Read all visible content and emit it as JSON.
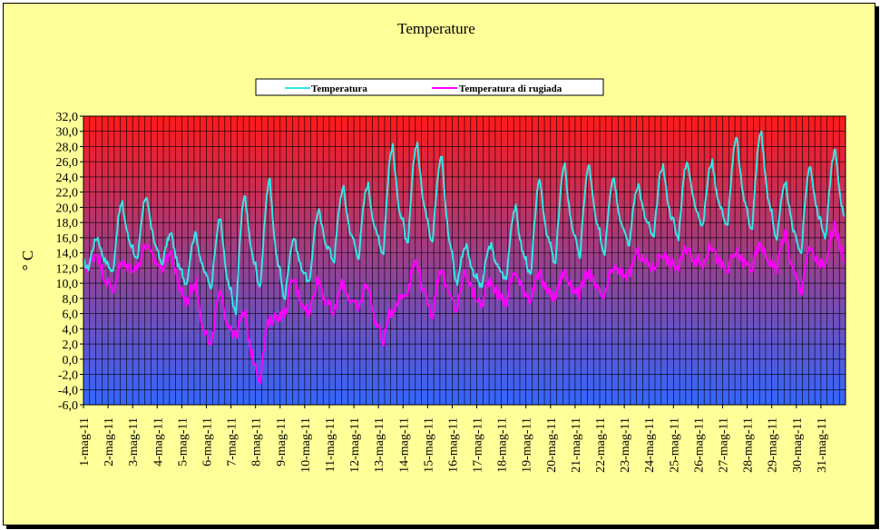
{
  "chart_data": {
    "type": "line",
    "title": "Temperature",
    "xlabel": "",
    "ylabel": "° C",
    "ylim": [
      -6,
      32
    ],
    "ytick_step": 2,
    "ytick_labels": [
      "-6,0",
      "-4,0",
      "-2,0",
      "0,0",
      "2,0",
      "4,0",
      "6,0",
      "8,0",
      "10,0",
      "12,0",
      "14,0",
      "16,0",
      "18,0",
      "20,0",
      "22,0",
      "24,0",
      "26,0",
      "28,0",
      "30,0",
      "32,0"
    ],
    "categories": [
      "1-mag-11",
      "2-mag-11",
      "3-mag-11",
      "4-mag-11",
      "5-mag-11",
      "6-mag-11",
      "7-mag-11",
      "8-mag-11",
      "9-mag-11",
      "10-mag-11",
      "11-mag-11",
      "12-mag-11",
      "13-mag-11",
      "14-mag-11",
      "15-mag-11",
      "16-mag-11",
      "17-mag-11",
      "18-mag-11",
      "19-mag-11",
      "20-mag-11",
      "21-mag-11",
      "22-mag-11",
      "23-mag-11",
      "24-mag-11",
      "25-mag-11",
      "26-mag-11",
      "27-mag-11",
      "28-mag-11",
      "29-mag-11",
      "30-mag-11",
      "31-mag-11"
    ],
    "grid": true,
    "legend_position": "top-center",
    "background_gradient": {
      "top": "#ff1a1a",
      "bottom": "#3366ff"
    },
    "series": [
      {
        "name": "Temperatura",
        "color": "#33e6e6",
        "daily_min": [
          12.0,
          11.5,
          13.0,
          12.5,
          10.0,
          9.5,
          6.0,
          9.5,
          8.0,
          10.0,
          13.0,
          13.5,
          14.0,
          15.0,
          15.5,
          10.0,
          9.5,
          10.5,
          11.0,
          12.5,
          13.5,
          14.0,
          15.0,
          16.0,
          16.0,
          17.5,
          17.5,
          17.0,
          16.0,
          14.0,
          16.0
        ],
        "daily_max": [
          16.0,
          20.5,
          21.5,
          16.5,
          16.5,
          18.5,
          21.5,
          23.5,
          16.0,
          19.5,
          22.5,
          23.0,
          28.0,
          28.5,
          27.0,
          15.0,
          15.0,
          20.0,
          23.5,
          25.5,
          25.5,
          24.0,
          23.0,
          25.5,
          26.0,
          26.0,
          29.0,
          30.0,
          23.0,
          25.5,
          27.5
        ]
      },
      {
        "name": "Temperatura di rugiada",
        "color": "#ff00ff",
        "daily_min": [
          12.0,
          9.0,
          12.0,
          12.0,
          7.5,
          1.5,
          3.0,
          -2.5,
          6.0,
          6.0,
          6.0,
          6.5,
          2.5,
          9.0,
          6.0,
          6.5,
          7.0,
          7.5,
          8.0,
          8.0,
          8.5,
          8.0,
          11.0,
          12.0,
          12.0,
          12.5,
          11.5,
          12.0,
          12.0,
          9.0,
          12.0
        ],
        "daily_max": [
          14.0,
          12.5,
          15.0,
          14.0,
          10.0,
          8.5,
          6.0,
          5.0,
          10.5,
          10.5,
          10.0,
          10.0,
          6.5,
          13.0,
          12.0,
          11.5,
          10.5,
          11.5,
          11.0,
          11.5,
          11.5,
          12.0,
          14.0,
          14.0,
          14.5,
          15.0,
          14.0,
          15.0,
          16.5,
          14.5,
          17.5
        ]
      }
    ]
  }
}
